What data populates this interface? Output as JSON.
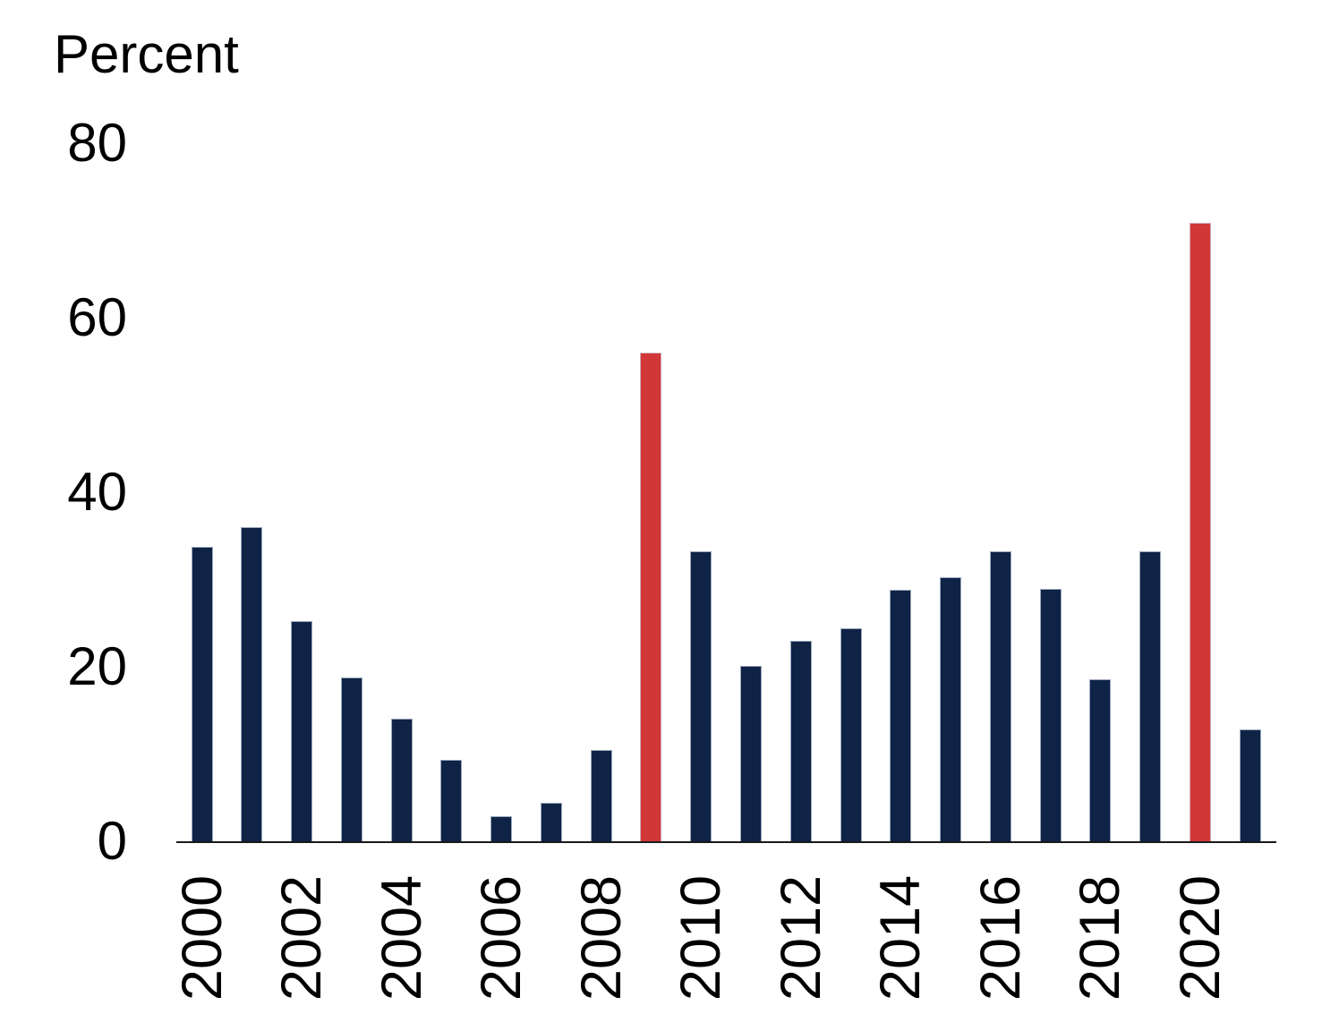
{
  "chart_data": {
    "type": "bar",
    "title": "Percent",
    "categories": [
      "2000",
      "2001",
      "2002",
      "2003",
      "2004",
      "2005",
      "2006",
      "2007",
      "2008",
      "2009",
      "2010",
      "2011",
      "2012",
      "2013",
      "2014",
      "2015",
      "2016",
      "2017",
      "2018",
      "2019",
      "2020",
      "2021"
    ],
    "values": [
      33.8,
      36.1,
      25.3,
      18.9,
      14.2,
      9.4,
      3.0,
      4.5,
      10.6,
      56.1,
      33.3,
      20.2,
      23.1,
      24.5,
      28.9,
      30.4,
      33.3,
      29.0,
      18.7,
      33.3,
      71.0,
      12.9
    ],
    "highlight_categories": [
      "2009",
      "2020"
    ],
    "xtick_labels": [
      "2000",
      "2002",
      "2004",
      "2006",
      "2008",
      "2010",
      "2012",
      "2014",
      "2016",
      "2018",
      "2020"
    ],
    "yticks": [
      0,
      20,
      40,
      60,
      80
    ],
    "ylim": [
      0,
      80
    ],
    "xlabel": "",
    "ylabel": "Percent",
    "grid": "off",
    "legend": "none",
    "colors": {
      "bar": "#0e2345",
      "highlight": "#d23737",
      "axis": "#1a1a1a",
      "text": "#000000"
    }
  }
}
